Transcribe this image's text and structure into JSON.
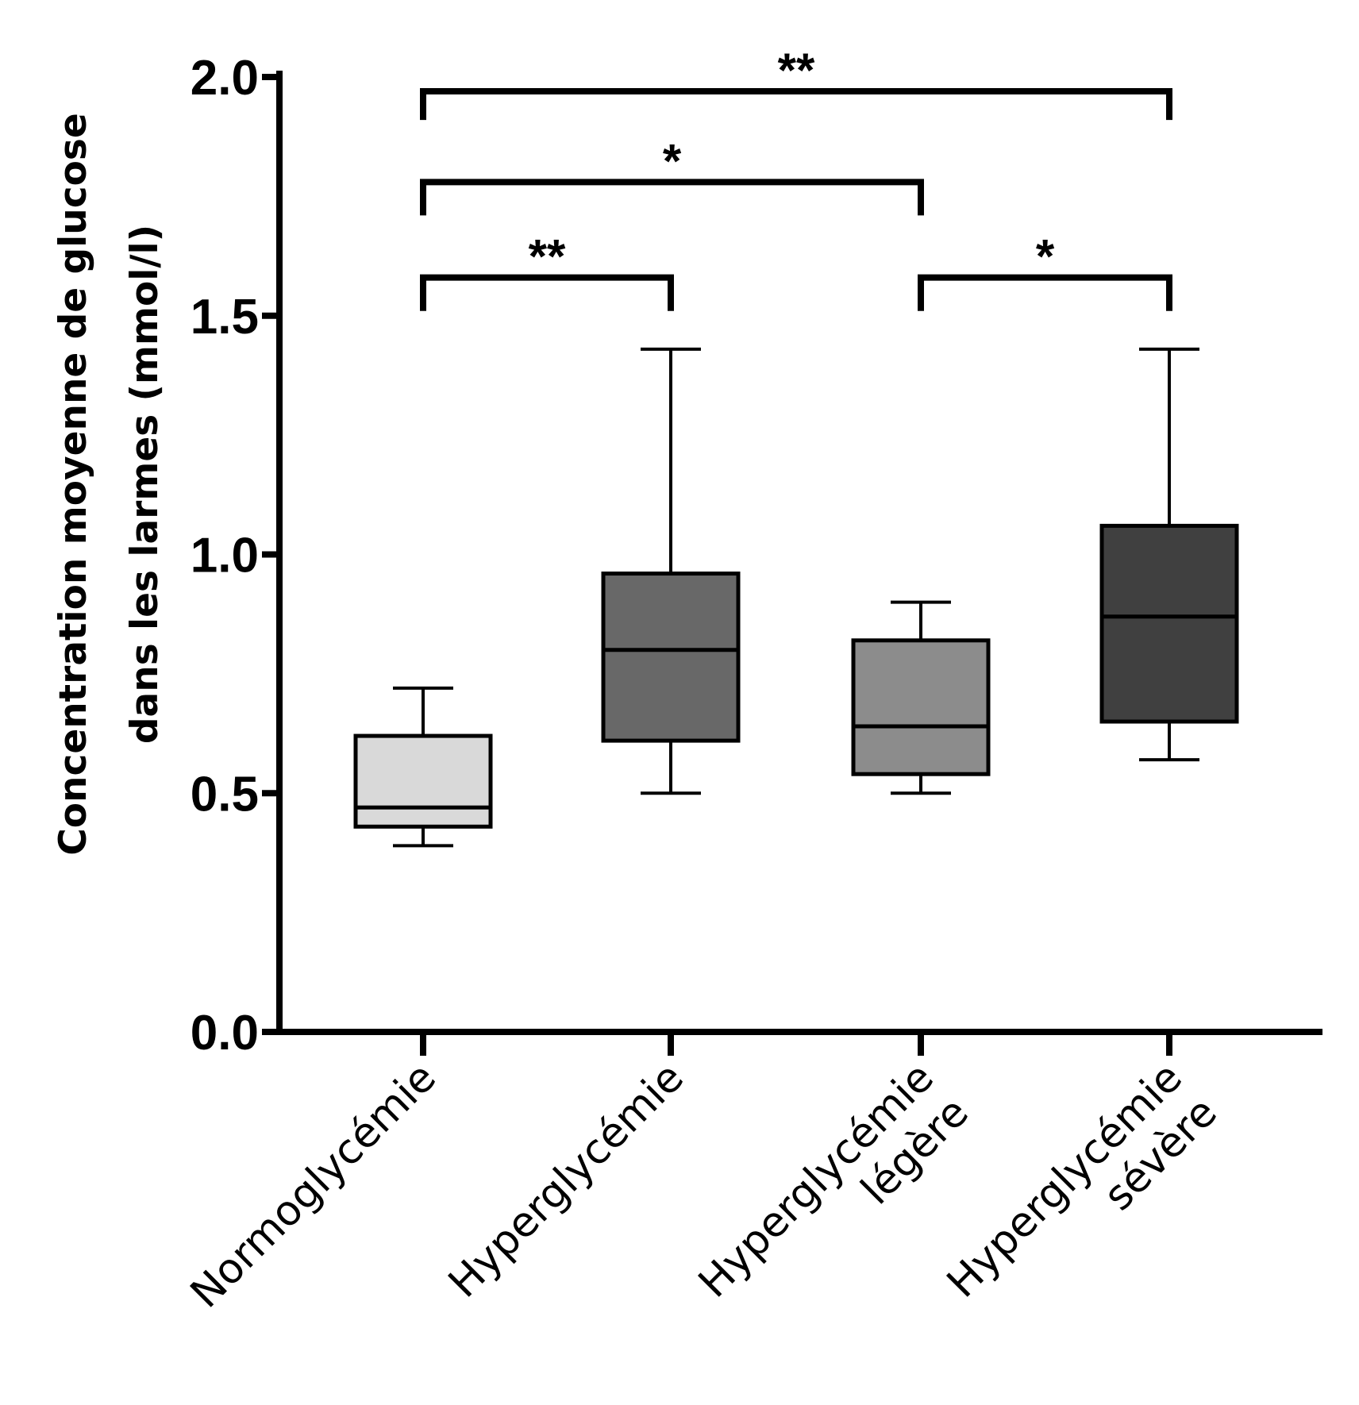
{
  "chart_data": {
    "type": "box",
    "ylabel_lines": [
      "Concentration moyenne de glucose",
      "dans les larmes (mmol/l)"
    ],
    "ylim": [
      0.0,
      2.0
    ],
    "yticks": [
      "0.0",
      "0.5",
      "1.0",
      "1.5",
      "2.0"
    ],
    "categories": [
      {
        "label_lines": [
          "Normoglycémie"
        ],
        "min": 0.39,
        "q1": 0.43,
        "median": 0.47,
        "q3": 0.62,
        "max": 0.72,
        "color": "#d9d9d9"
      },
      {
        "label_lines": [
          "Hyperglycémie"
        ],
        "min": 0.5,
        "q1": 0.61,
        "median": 0.8,
        "q3": 0.96,
        "max": 1.43,
        "color": "#686868"
      },
      {
        "label_lines": [
          "Hyperglycémie",
          "légère"
        ],
        "min": 0.5,
        "q1": 0.54,
        "median": 0.64,
        "q3": 0.82,
        "max": 0.9,
        "color": "#8c8c8c"
      },
      {
        "label_lines": [
          "Hyperglycémie",
          "sévère"
        ],
        "min": 0.57,
        "q1": 0.65,
        "median": 0.87,
        "q3": 1.06,
        "max": 1.43,
        "color": "#404040"
      }
    ],
    "significance": [
      {
        "from": 0,
        "to": 3,
        "label": "**",
        "y": 1.97,
        "drop_to": 1.91
      },
      {
        "from": 0,
        "to": 2,
        "label": "*",
        "y": 1.78,
        "drop_to": 1.71
      },
      {
        "from": 0,
        "to": 1,
        "label": "**",
        "y": 1.58,
        "drop_to": 1.51
      },
      {
        "from": 2,
        "to": 3,
        "label": "*",
        "y": 1.58,
        "drop_to": 1.51
      }
    ]
  }
}
